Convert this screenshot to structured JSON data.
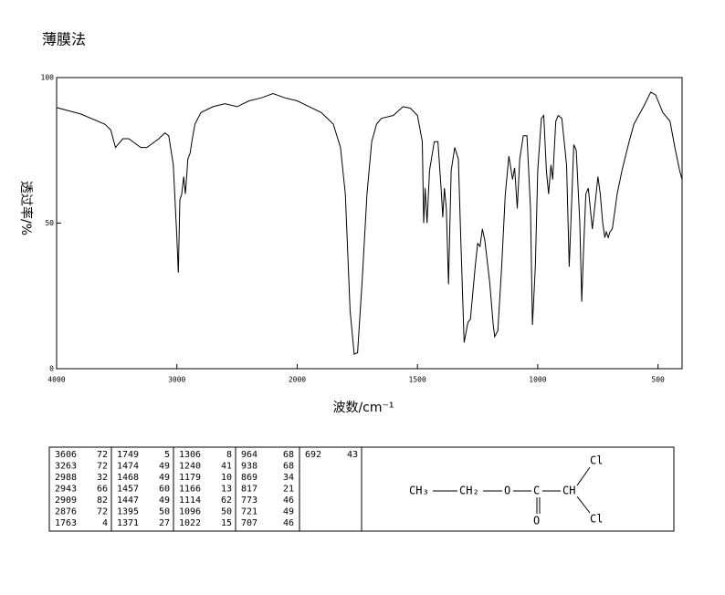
{
  "chart_data": {
    "type": "line",
    "title": "薄膜法",
    "y_label": "透过率/%",
    "x_label": "波数/cm⁻¹",
    "xlim": [
      4000,
      400
    ],
    "xticks": [
      4000,
      3000,
      2000,
      1500,
      1000,
      500
    ],
    "ylim": [
      0,
      100
    ],
    "yticks": [
      0,
      50,
      100
    ],
    "color": "#000000",
    "x": [
      4000,
      3800,
      3600,
      3550,
      3510,
      3450,
      3400,
      3300,
      3250,
      3150,
      3100,
      3068,
      3030,
      3000,
      2988,
      2975,
      2960,
      2943,
      2930,
      2915,
      2909,
      2890,
      2876,
      2850,
      2800,
      2700,
      2600,
      2500,
      2400,
      2300,
      2200,
      2100,
      2000,
      1950,
      1900,
      1850,
      1820,
      1800,
      1780,
      1763,
      1749,
      1730,
      1710,
      1690,
      1670,
      1650,
      1600,
      1560,
      1530,
      1500,
      1480,
      1474,
      1468,
      1460,
      1450,
      1430,
      1415,
      1400,
      1395,
      1388,
      1380,
      1371,
      1360,
      1345,
      1330,
      1320,
      1306,
      1290,
      1280,
      1260,
      1250,
      1240,
      1230,
      1220,
      1210,
      1200,
      1185,
      1179,
      1166,
      1150,
      1135,
      1120,
      1114,
      1105,
      1096,
      1085,
      1075,
      1060,
      1045,
      1030,
      1022,
      1010,
      1000,
      985,
      975,
      964,
      955,
      945,
      938,
      925,
      915,
      900,
      880,
      869,
      860,
      850,
      840,
      825,
      817,
      810,
      800,
      790,
      773,
      760,
      750,
      740,
      730,
      721,
      715,
      707,
      700,
      690,
      670,
      650,
      620,
      600,
      560,
      530,
      510,
      480,
      450,
      430,
      410,
      400
    ],
    "values": [
      89.7,
      87.5,
      84,
      82,
      76,
      79,
      79,
      76,
      76,
      79,
      81,
      80,
      70,
      45,
      33,
      58,
      60,
      66,
      60,
      68,
      72,
      74,
      78,
      84,
      88,
      90,
      91,
      90,
      92,
      93,
      94.5,
      93,
      92,
      90,
      88,
      84,
      76,
      60,
      20,
      5,
      5.5,
      30,
      60,
      78,
      84,
      86,
      87,
      90,
      89.5,
      87,
      78,
      50,
      62,
      50,
      68,
      78,
      78,
      60,
      52,
      62,
      55,
      29,
      68,
      76,
      72,
      45,
      9,
      16,
      17,
      35,
      43,
      42,
      48,
      44,
      37,
      30,
      15,
      11,
      13,
      35,
      60,
      73,
      70,
      65,
      69,
      55,
      72,
      80,
      80,
      55,
      15,
      35,
      68,
      86,
      87,
      68,
      60,
      70,
      65,
      85,
      87,
      86,
      70,
      35,
      55,
      77,
      75,
      50,
      23,
      40,
      60,
      62,
      48,
      58,
      66,
      60,
      50,
      45,
      47,
      45,
      47,
      48,
      60,
      68,
      78,
      84,
      90,
      95,
      94,
      88,
      85,
      76,
      68,
      65
    ]
  },
  "peak_table": [
    [
      [
        3606,
        72
      ],
      [
        3263,
        72
      ],
      [
        2988,
        32
      ],
      [
        2943,
        66
      ],
      [
        2909,
        82
      ],
      [
        2876,
        72
      ],
      [
        1763,
        4
      ]
    ],
    [
      [
        1749,
        5
      ],
      [
        1474,
        49
      ],
      [
        1468,
        49
      ],
      [
        1457,
        60
      ],
      [
        1447,
        49
      ],
      [
        1395,
        50
      ],
      [
        1371,
        27
      ]
    ],
    [
      [
        1306,
        8
      ],
      [
        1240,
        41
      ],
      [
        1179,
        10
      ],
      [
        1166,
        13
      ],
      [
        1114,
        62
      ],
      [
        1096,
        50
      ],
      [
        1022,
        15
      ]
    ],
    [
      [
        964,
        68
      ],
      [
        938,
        68
      ],
      [
        869,
        34
      ],
      [
        817,
        21
      ],
      [
        773,
        46
      ],
      [
        721,
        49
      ],
      [
        707,
        46
      ]
    ],
    [
      [
        692,
        43
      ]
    ]
  ],
  "structure": {
    "ch3": "CH₃",
    "ch2": "CH₂",
    "o_ether": "O",
    "c": "C",
    "ch": "CH",
    "cl_top": "Cl",
    "cl_bottom": "Cl",
    "o_carbonyl": "O"
  }
}
